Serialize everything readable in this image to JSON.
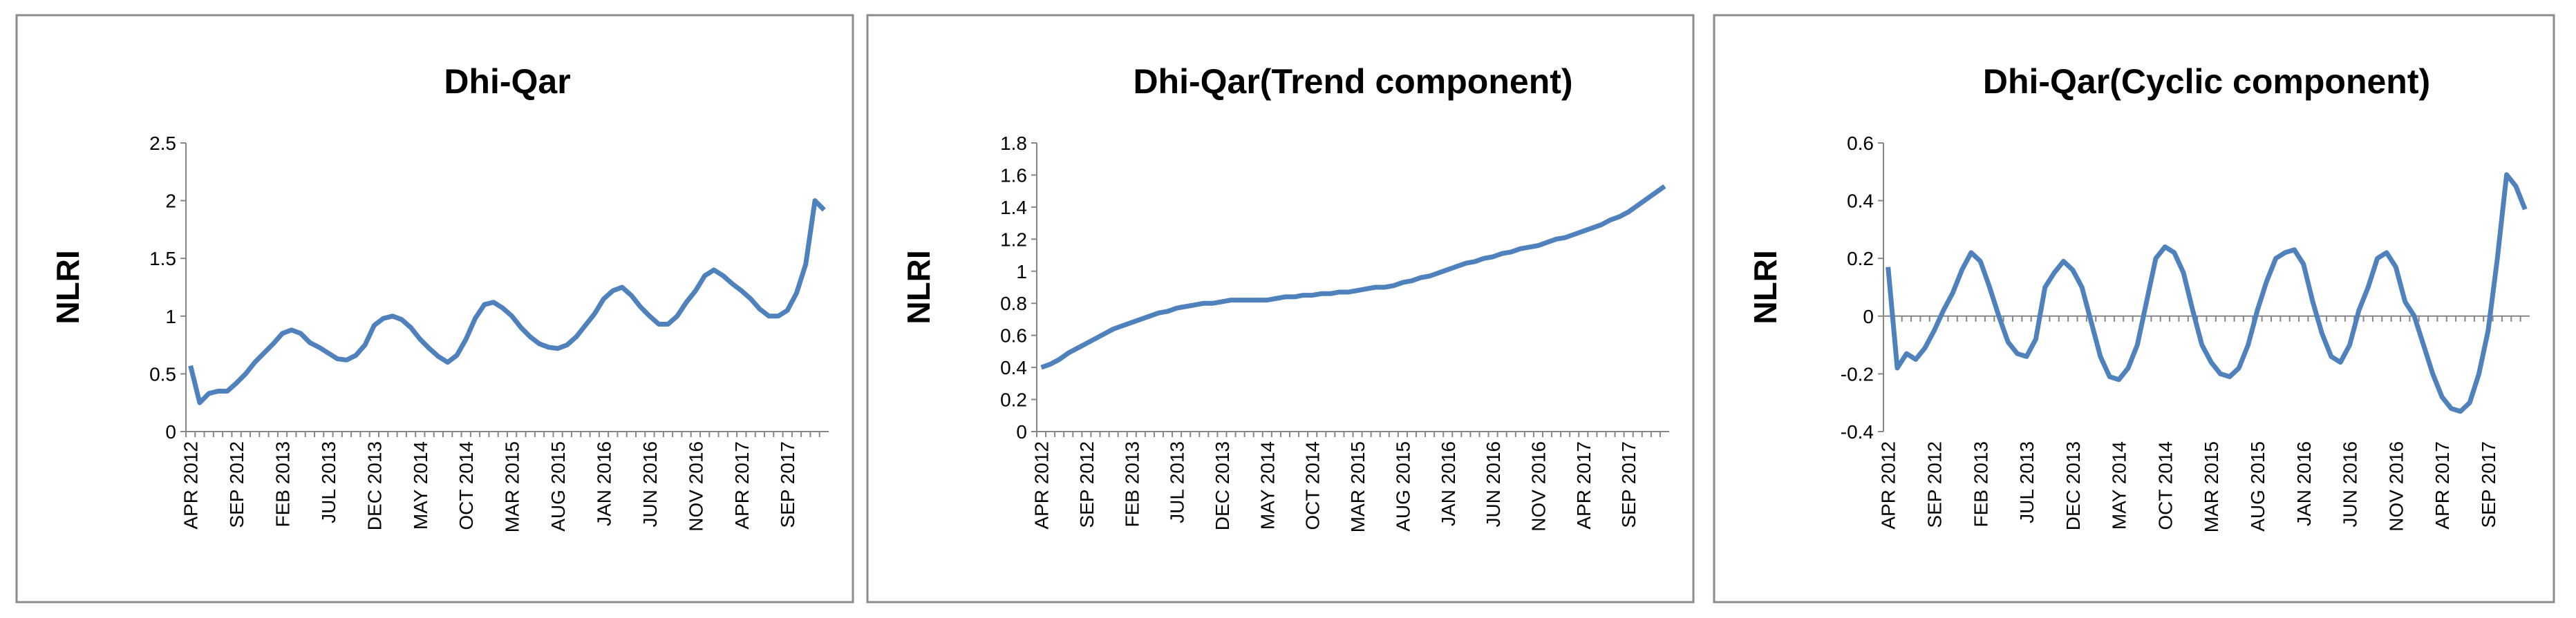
{
  "chart_data": [
    {
      "type": "line",
      "title": "Dhi-Qar",
      "ylabel": "NLRI",
      "color": "#4f81bd",
      "categories": [
        "APR 2012",
        null,
        null,
        null,
        null,
        "SEP 2012",
        null,
        null,
        null,
        null,
        "FEB 2013",
        null,
        null,
        null,
        null,
        "JUL 2013",
        null,
        null,
        null,
        null,
        "DEC 2013",
        null,
        null,
        null,
        null,
        "MAY 2014",
        null,
        null,
        null,
        null,
        "OCT 2014",
        null,
        null,
        null,
        null,
        "MAR 2015",
        null,
        null,
        null,
        null,
        "AUG 2015",
        null,
        null,
        null,
        null,
        "JAN 2016",
        null,
        null,
        null,
        null,
        "JUN 2016",
        null,
        null,
        null,
        null,
        "NOV 2016",
        null,
        null,
        null,
        null,
        "APR 2017",
        null,
        null,
        null,
        null,
        "SEP 2017",
        null,
        null,
        null,
        null
      ],
      "values": [
        0.57,
        0.25,
        0.33,
        0.35,
        0.35,
        0.42,
        0.5,
        0.6,
        0.68,
        0.76,
        0.85,
        0.88,
        0.85,
        0.77,
        0.73,
        0.68,
        0.63,
        0.62,
        0.66,
        0.75,
        0.92,
        0.98,
        1.0,
        0.97,
        0.9,
        0.8,
        0.72,
        0.65,
        0.6,
        0.66,
        0.8,
        0.98,
        1.1,
        1.12,
        1.07,
        1.0,
        0.9,
        0.82,
        0.76,
        0.73,
        0.72,
        0.75,
        0.82,
        0.92,
        1.02,
        1.15,
        1.22,
        1.25,
        1.18,
        1.08,
        1.0,
        0.93,
        0.93,
        1.0,
        1.12,
        1.22,
        1.35,
        1.4,
        1.35,
        1.28,
        1.22,
        1.15,
        1.06,
        1.0,
        1.0,
        1.05,
        1.2,
        1.45,
        2.0,
        1.92
      ],
      "ylim": [
        0,
        2.5
      ],
      "yticks": [
        0,
        0.5,
        1,
        1.5,
        2,
        2.5
      ]
    },
    {
      "type": "line",
      "title": "Dhi-Qar(Trend component)",
      "ylabel": "NLRI",
      "color": "#4f81bd",
      "categories": [
        "APR 2012",
        null,
        null,
        null,
        null,
        "SEP 2012",
        null,
        null,
        null,
        null,
        "FEB 2013",
        null,
        null,
        null,
        null,
        "JUL 2013",
        null,
        null,
        null,
        null,
        "DEC 2013",
        null,
        null,
        null,
        null,
        "MAY 2014",
        null,
        null,
        null,
        null,
        "OCT 2014",
        null,
        null,
        null,
        null,
        "MAR 2015",
        null,
        null,
        null,
        null,
        "AUG 2015",
        null,
        null,
        null,
        null,
        "JAN 2016",
        null,
        null,
        null,
        null,
        "JUN 2016",
        null,
        null,
        null,
        null,
        "NOV 2016",
        null,
        null,
        null,
        null,
        "APR 2017",
        null,
        null,
        null,
        null,
        "SEP 2017",
        null,
        null,
        null,
        null
      ],
      "values": [
        0.4,
        0.42,
        0.45,
        0.49,
        0.52,
        0.55,
        0.58,
        0.61,
        0.64,
        0.66,
        0.68,
        0.7,
        0.72,
        0.74,
        0.75,
        0.77,
        0.78,
        0.79,
        0.8,
        0.8,
        0.81,
        0.82,
        0.82,
        0.82,
        0.82,
        0.82,
        0.83,
        0.84,
        0.84,
        0.85,
        0.85,
        0.86,
        0.86,
        0.87,
        0.87,
        0.88,
        0.89,
        0.9,
        0.9,
        0.91,
        0.93,
        0.94,
        0.96,
        0.97,
        0.99,
        1.01,
        1.03,
        1.05,
        1.06,
        1.08,
        1.09,
        1.11,
        1.12,
        1.14,
        1.15,
        1.16,
        1.18,
        1.2,
        1.21,
        1.23,
        1.25,
        1.27,
        1.29,
        1.32,
        1.34,
        1.37,
        1.41,
        1.45,
        1.49,
        1.53
      ],
      "ylim": [
        0,
        1.8
      ],
      "yticks": [
        0,
        0.2,
        0.4,
        0.6,
        0.8,
        1,
        1.2,
        1.4,
        1.6,
        1.8
      ]
    },
    {
      "type": "line",
      "title": "Dhi-Qar(Cyclic component)",
      "ylabel": "NLRI",
      "color": "#4f81bd",
      "categories": [
        "APR 2012",
        null,
        null,
        null,
        null,
        "SEP 2012",
        null,
        null,
        null,
        null,
        "FEB 2013",
        null,
        null,
        null,
        null,
        "JUL 2013",
        null,
        null,
        null,
        null,
        "DEC 2013",
        null,
        null,
        null,
        null,
        "MAY 2014",
        null,
        null,
        null,
        null,
        "OCT 2014",
        null,
        null,
        null,
        null,
        "MAR 2015",
        null,
        null,
        null,
        null,
        "AUG 2015",
        null,
        null,
        null,
        null,
        "JAN 2016",
        null,
        null,
        null,
        null,
        "JUN 2016",
        null,
        null,
        null,
        null,
        "NOV 2016",
        null,
        null,
        null,
        null,
        "APR 2017",
        null,
        null,
        null,
        null,
        "SEP 2017",
        null,
        null,
        null,
        null
      ],
      "values": [
        0.17,
        -0.18,
        -0.13,
        -0.15,
        -0.11,
        -0.05,
        0.02,
        0.08,
        0.16,
        0.22,
        0.19,
        0.1,
        0.0,
        -0.09,
        -0.13,
        -0.14,
        -0.08,
        0.1,
        0.15,
        0.19,
        0.16,
        0.1,
        -0.02,
        -0.14,
        -0.21,
        -0.22,
        -0.18,
        -0.1,
        0.05,
        0.2,
        0.24,
        0.22,
        0.15,
        0.02,
        -0.1,
        -0.16,
        -0.2,
        -0.21,
        -0.18,
        -0.1,
        0.02,
        0.12,
        0.2,
        0.22,
        0.23,
        0.18,
        0.05,
        -0.06,
        -0.14,
        -0.16,
        -0.1,
        0.02,
        0.1,
        0.2,
        0.22,
        0.17,
        0.05,
        0.0,
        -0.1,
        -0.2,
        -0.28,
        -0.32,
        -0.33,
        -0.3,
        -0.2,
        -0.05,
        0.2,
        0.49,
        0.45,
        0.37
      ],
      "ylim": [
        -0.4,
        0.6
      ],
      "yticks": [
        -0.4,
        -0.2,
        0,
        0.2,
        0.4,
        0.6
      ]
    }
  ]
}
